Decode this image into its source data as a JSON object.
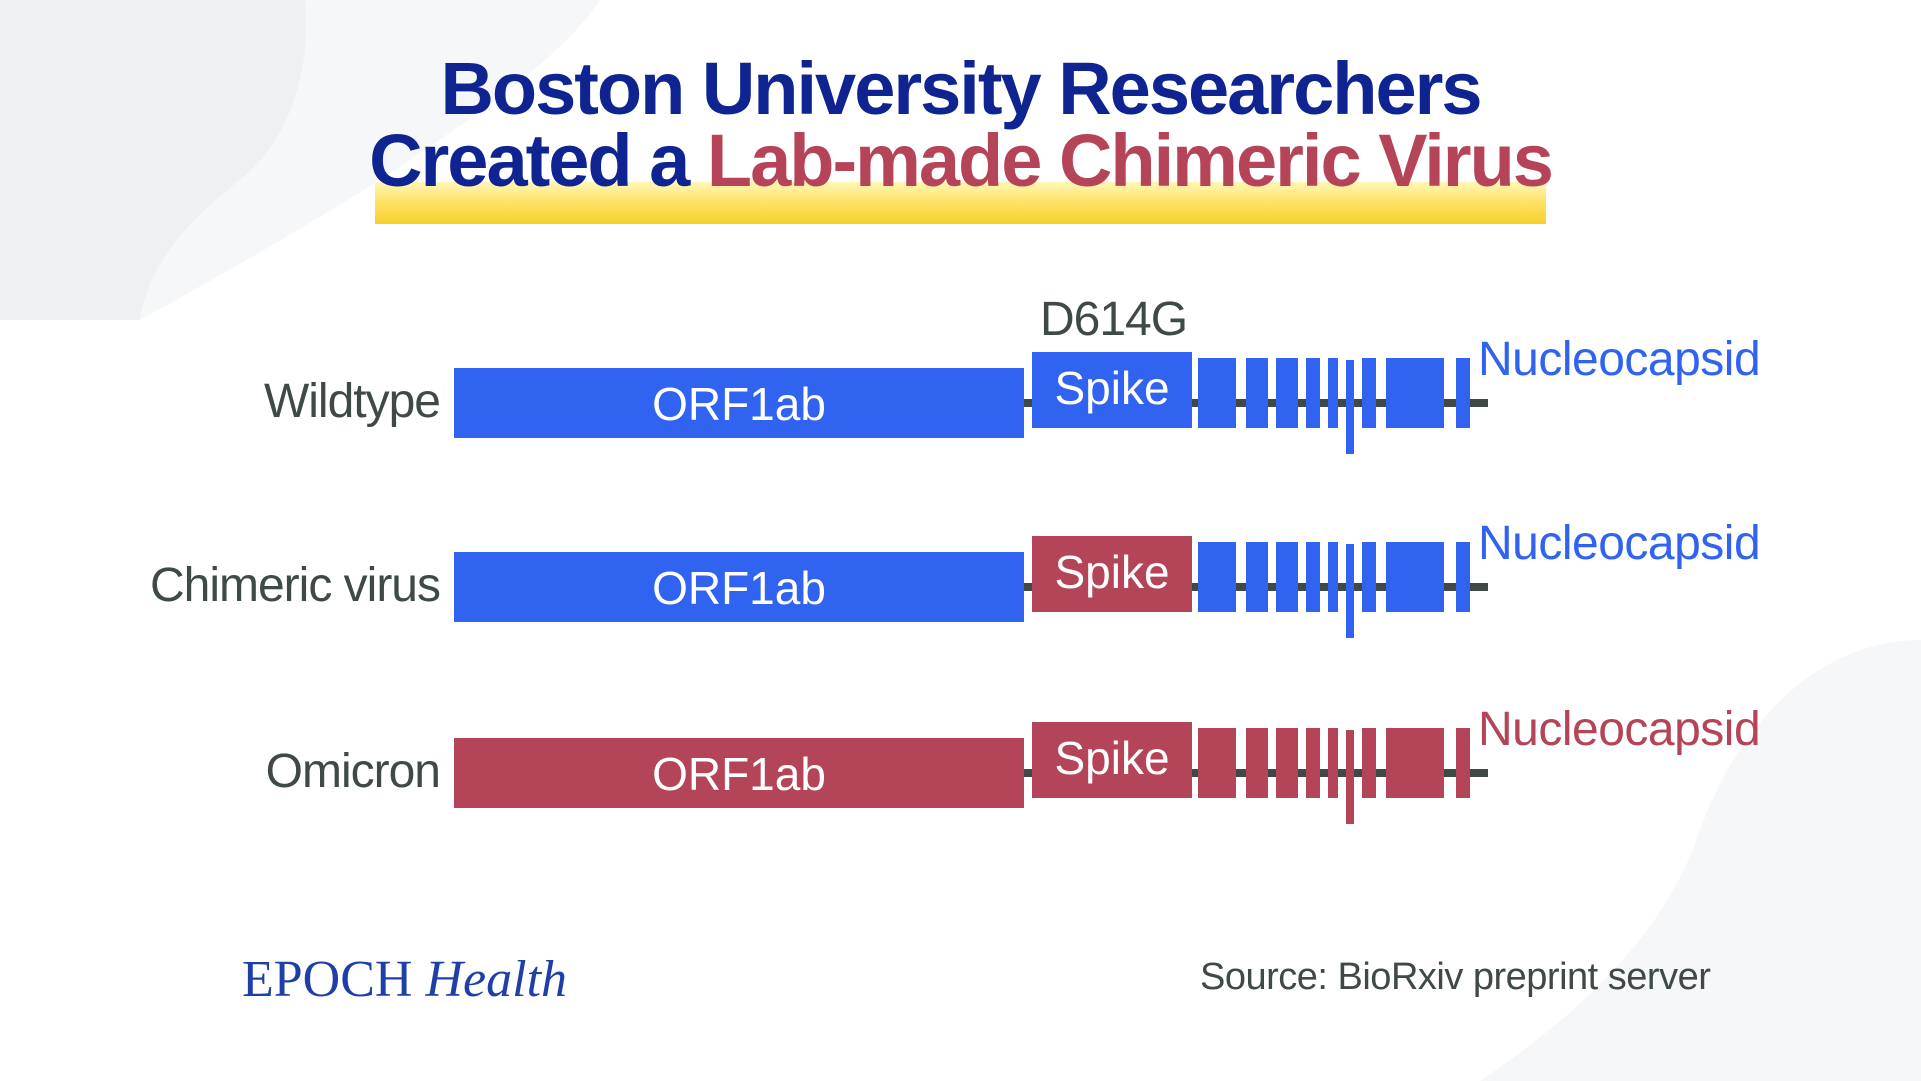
{
  "title": {
    "line1": "Boston University Researchers",
    "line2_prefix": "Created a ",
    "line2_accent": "Lab-made Chimeric Virus"
  },
  "colors": {
    "blue": "#2f63f0",
    "red": "#b44457",
    "navy": "#0f2490",
    "line": "#3f4a48",
    "highlight": "#f6d12a"
  },
  "mutation_label": "D614G",
  "rows": [
    {
      "name": "Wildtype",
      "orf": "ORF1ab",
      "spike": "Spike",
      "nucleocapsid": "Nucleocapsid",
      "orf_color": "blue",
      "spike_color": "blue",
      "tail_color": "blue"
    },
    {
      "name": "Chimeric virus",
      "orf": "ORF1ab",
      "spike": "Spike",
      "nucleocapsid": "Nucleocapsid",
      "orf_color": "blue",
      "spike_color": "red",
      "tail_color": "blue"
    },
    {
      "name": "Omicron",
      "orf": "ORF1ab",
      "spike": "Spike",
      "nucleocapsid": "Nucleocapsid",
      "orf_color": "red",
      "spike_color": "red",
      "tail_color": "red"
    }
  ],
  "footer": {
    "logo_epoch": "EPOCH",
    "logo_health": "Health",
    "source": "Source: BioRxiv preprint server"
  }
}
